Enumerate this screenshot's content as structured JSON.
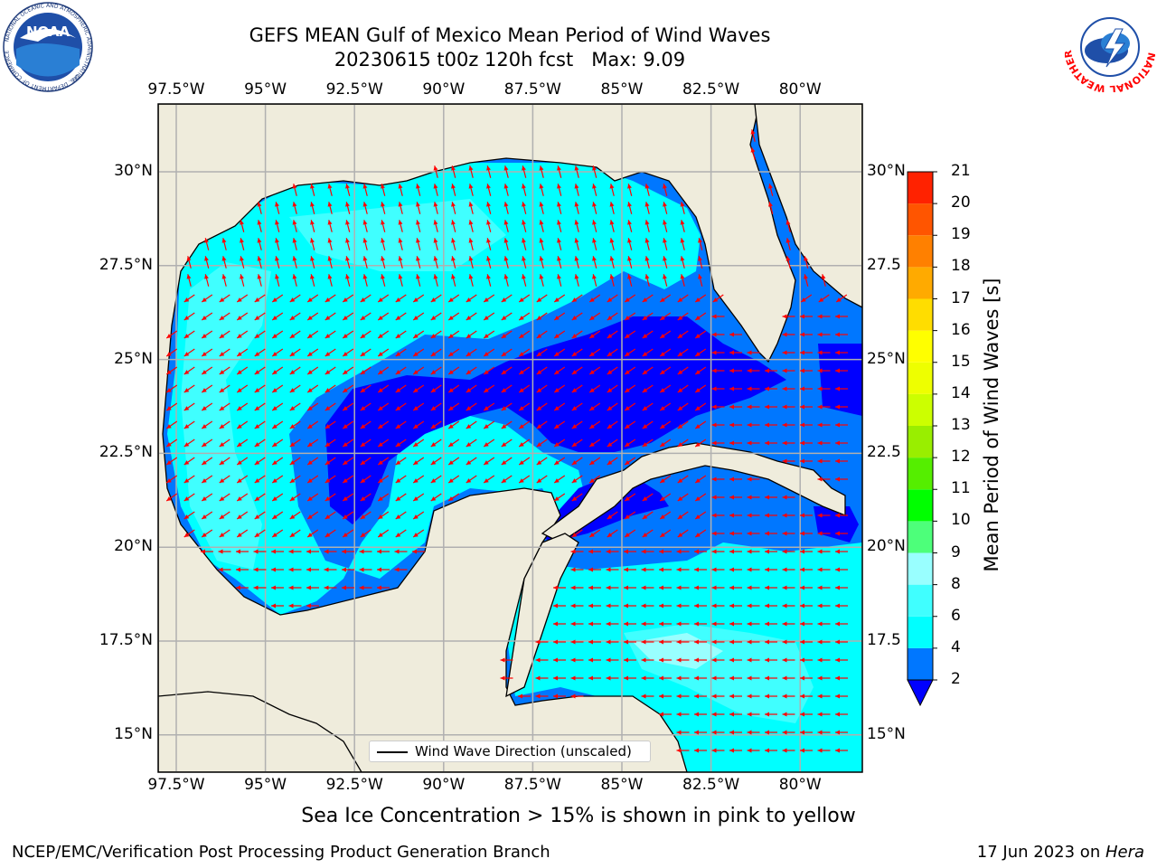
{
  "title": {
    "line1": "GEFS MEAN Gulf of Mexico Mean Period of Wind Waves",
    "line2": "20230615 t00z 120h fcst   Max: 9.09"
  },
  "map": {
    "lon_ticks": [
      "97.5°W",
      "95°W",
      "92.5°W",
      "90°W",
      "87.5°W",
      "85°W",
      "82.5°W",
      "80°W"
    ],
    "lat_ticks_left": [
      "30°N",
      "27.5°N",
      "25°N",
      "22.5°N",
      "20°N",
      "17.5°N",
      "15°N"
    ],
    "lat_ticks_right": [
      "30°N",
      "27.5",
      "25°N",
      "22.5",
      "20°N",
      "17.5",
      "15°N"
    ],
    "land_color": "#efecdc",
    "grid": true,
    "vector_color": "#ff0000",
    "legend_label": "Wind Wave Direction (unscaled)"
  },
  "colorbar": {
    "title": "Mean Period of Wind Waves [s]",
    "levels": [
      "2",
      "4",
      "6",
      "8",
      "9",
      "10",
      "11",
      "12",
      "13",
      "14",
      "15",
      "16",
      "17",
      "18",
      "19",
      "20",
      "21"
    ],
    "colors": [
      "#0000ff",
      "#0077ff",
      "#00ffff",
      "#40ffff",
      "#99ffff",
      "#4dff7a",
      "#00ff00",
      "#55ee00",
      "#99ee00",
      "#ccff00",
      "#eeff00",
      "#ffff00",
      "#ffdd00",
      "#ffaa00",
      "#ff8000",
      "#ff5500",
      "#ff2200",
      "#ff0000"
    ],
    "extend_min_color": "#0000ff"
  },
  "footer": {
    "note": "Sea Ice Concentration > 15% is shown in pink to yellow",
    "left": "NCEP/EMC/Verification Post Processing Product Generation Branch",
    "right_prefix": "17 Jun 2023 on ",
    "right_machine": "Hera"
  },
  "logos": {
    "noaa_text": "NOAA",
    "noaa_ring_top": "NATIONAL OCEANIC AND ATMOSPHERIC ADMINISTRATION",
    "noaa_ring_bottom": "U.S. DEPARTMENT OF COMMERCE",
    "nws_ring": "NATIONAL WEATHER SERVICE"
  }
}
